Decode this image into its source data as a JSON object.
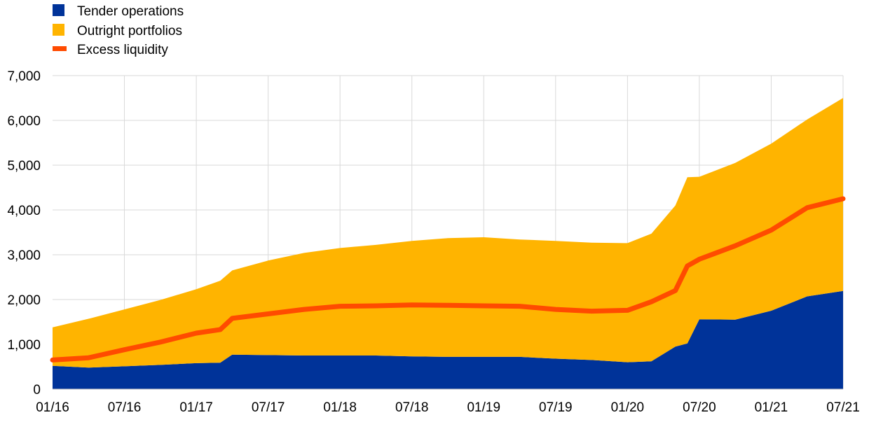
{
  "chart_data": {
    "type": "area",
    "title": "",
    "xlabel": "",
    "ylabel": "",
    "x_range": [
      "2016-01",
      "2021-07"
    ],
    "ylim": [
      0,
      7000
    ],
    "grid": true,
    "legend_placement": "top-left",
    "x_ticks": [
      "01/16",
      "07/16",
      "01/17",
      "07/17",
      "01/18",
      "07/18",
      "01/19",
      "07/19",
      "01/20",
      "07/20",
      "01/21",
      "07/21"
    ],
    "y_ticks": [
      "0",
      "1,000",
      "2,000",
      "3,000",
      "4,000",
      "5,000",
      "6,000",
      "7,000"
    ],
    "x": [
      "2016-01",
      "2016-04",
      "2016-07",
      "2016-10",
      "2017-01",
      "2017-03",
      "2017-04",
      "2017-07",
      "2017-10",
      "2018-01",
      "2018-04",
      "2018-07",
      "2018-10",
      "2019-01",
      "2019-04",
      "2019-07",
      "2019-10",
      "2020-01",
      "2020-03",
      "2020-05",
      "2020-06",
      "2020-07",
      "2020-10",
      "2021-01",
      "2021-04",
      "2021-07"
    ],
    "series": [
      {
        "name": "Tender operations",
        "kind": "stacked-area",
        "color": "#003399",
        "values": [
          520,
          480,
          510,
          540,
          580,
          590,
          770,
          760,
          750,
          750,
          750,
          730,
          720,
          720,
          720,
          680,
          650,
          600,
          620,
          950,
          1020,
          1560,
          1550,
          1750,
          2070,
          2190
        ]
      },
      {
        "name": "Outright portfolios",
        "kind": "stacked-area",
        "color": "#ffb400",
        "values": [
          860,
          1090,
          1270,
          1450,
          1650,
          1830,
          1880,
          2110,
          2290,
          2400,
          2470,
          2580,
          2650,
          2670,
          2620,
          2630,
          2620,
          2660,
          2850,
          3150,
          3710,
          3180,
          3500,
          3730,
          3950,
          4310
        ]
      },
      {
        "name": "Excess liquidity",
        "kind": "line",
        "color": "#ff4b00",
        "values": [
          650,
          700,
          880,
          1050,
          1250,
          1330,
          1580,
          1680,
          1780,
          1850,
          1860,
          1880,
          1870,
          1860,
          1850,
          1780,
          1740,
          1760,
          1950,
          2200,
          2750,
          2900,
          3200,
          3550,
          4050,
          4250
        ]
      }
    ]
  }
}
